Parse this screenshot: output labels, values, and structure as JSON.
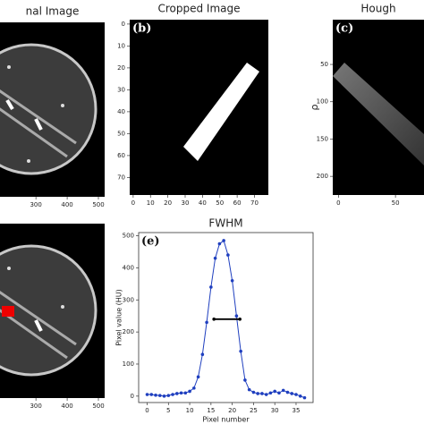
{
  "chart_data": [
    {
      "type": "image",
      "title": "nal Image",
      "xlim": [
        185,
        520
      ],
      "xticks": [
        300,
        400,
        500
      ]
    },
    {
      "type": "image",
      "title": "Cropped Image",
      "panel_label": "(b)",
      "xlim": [
        -2,
        78
      ],
      "ylim": [
        -2,
        78
      ],
      "xticks": [
        0,
        10,
        20,
        30,
        40,
        50,
        60,
        70
      ],
      "yticks": [
        0,
        10,
        20,
        30,
        40,
        50,
        60,
        70
      ]
    },
    {
      "type": "image",
      "title": "Hough",
      "panel_label": "(c)",
      "ylabel": "ρ",
      "xlim": [
        -5,
        75
      ],
      "ylim": [
        -10,
        225
      ],
      "xticks": [
        0,
        50
      ],
      "yticks": [
        50,
        100,
        150,
        200
      ]
    },
    {
      "type": "image",
      "xlim": [
        185,
        520
      ],
      "xticks": [
        300,
        400,
        500
      ]
    },
    {
      "type": "line",
      "title": "FWHM",
      "panel_label": "(e)",
      "xlabel": "Pixel number",
      "ylabel": "Pixel value (HU)",
      "x": [
        0,
        1,
        2,
        3,
        4,
        5,
        6,
        7,
        8,
        9,
        10,
        11,
        12,
        13,
        14,
        15,
        16,
        17,
        18,
        19,
        20,
        21,
        22,
        23,
        24,
        25,
        26,
        27,
        28,
        29,
        30,
        31,
        32,
        33,
        34,
        35,
        36,
        37
      ],
      "series": [
        {
          "name": "Pixel value",
          "color": "#1f3fbf",
          "values": [
            5,
            5,
            3,
            2,
            0,
            2,
            5,
            8,
            10,
            10,
            15,
            25,
            60,
            130,
            230,
            340,
            430,
            475,
            485,
            440,
            360,
            250,
            140,
            50,
            20,
            12,
            8,
            8,
            5,
            10,
            15,
            10,
            18,
            12,
            8,
            5,
            0,
            -5
          ]
        }
      ],
      "fwhm": {
        "x": [
          15.7,
          21.8
        ],
        "y": 240
      },
      "xlim": [
        -2,
        39
      ],
      "ylim": [
        -20,
        510
      ],
      "xticks": [
        0,
        5,
        10,
        15,
        20,
        25,
        30,
        35
      ],
      "yticks": [
        0,
        100,
        200,
        300,
        400,
        500
      ]
    }
  ]
}
